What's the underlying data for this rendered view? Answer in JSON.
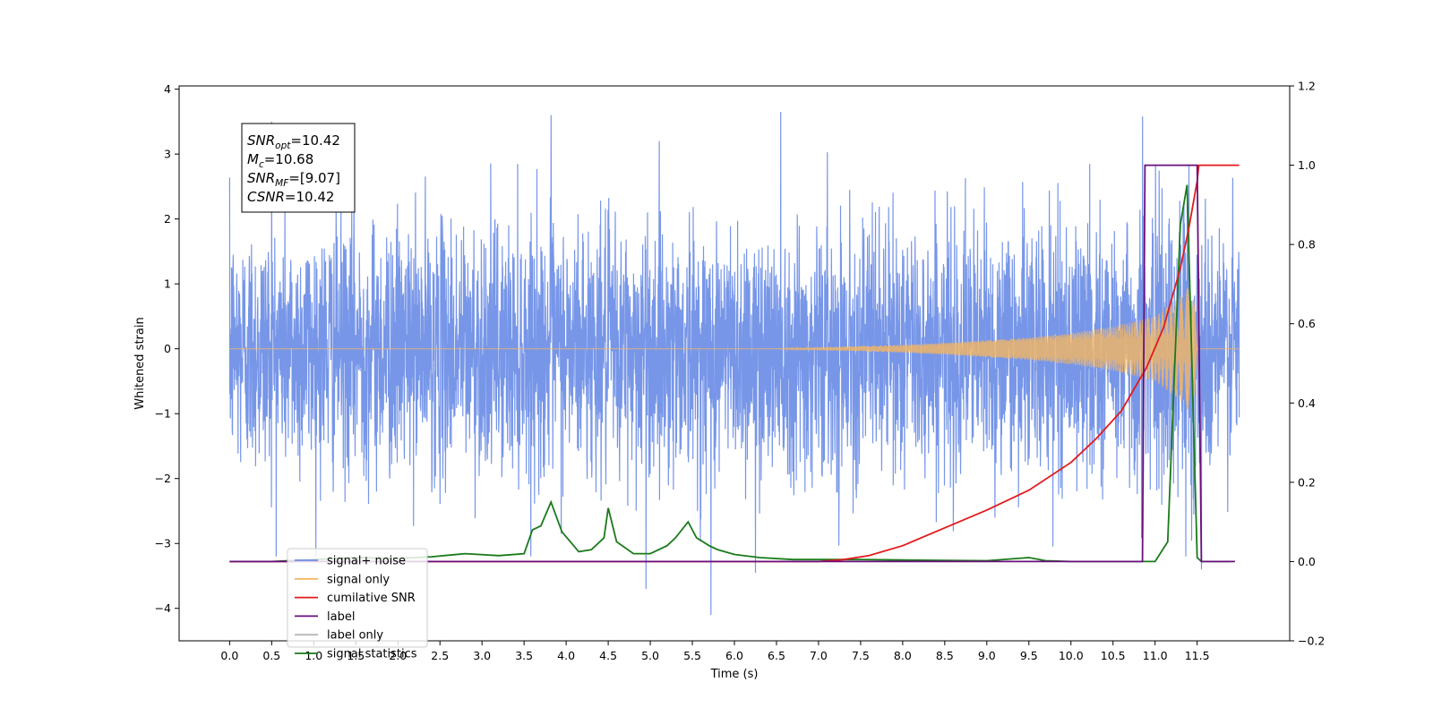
{
  "chart_data": {
    "type": "line",
    "title": "",
    "xlabel": "Time (s)",
    "ylabel": "Whitened strain",
    "xlim": [
      -0.6,
      12.6
    ],
    "ylim": [
      -4.5,
      4.05
    ],
    "y2lim": [
      -0.2,
      1.2
    ],
    "xticks": [
      "0.0",
      "0.5",
      "1.0",
      "1.5",
      "2.0",
      "2.5",
      "3.0",
      "3.5",
      "4.0",
      "4.5",
      "5.0",
      "5.5",
      "6.0",
      "6.5",
      "7.0",
      "7.5",
      "8.0",
      "8.5",
      "9.0",
      "9.5",
      "10.0",
      "10.5",
      "11.0",
      "11.5"
    ],
    "yticks": [
      "−4",
      "−3",
      "−2",
      "−1",
      "0",
      "1",
      "2",
      "3",
      "4"
    ],
    "y2ticks": [
      "−0.2",
      "0.0",
      "0.2",
      "0.4",
      "0.6",
      "0.8",
      "1.0",
      "1.2"
    ],
    "grid": false,
    "legend_position": "lower-left",
    "annotation": [
      {
        "main": "SNR",
        "sub": "opt",
        "rest": "=10.42"
      },
      {
        "main": "M",
        "sub": "c",
        "rest": "=10.68"
      },
      {
        "main": "SNR",
        "sub": "MF",
        "rest": "=[9.07]"
      },
      {
        "main": "CSNR",
        "sub": "",
        "rest": "=10.42"
      }
    ],
    "series": [
      {
        "name": "signal+ noise",
        "color": "#6b8de6",
        "axis": "left",
        "description": "noisy whitened strain, approx. sigma 1, 0 to 12.0 s",
        "t_range": [
          0.0,
          12.0
        ],
        "amplitude_std": 1.0,
        "extreme_values": [
          [
            0.5,
            3.5
          ],
          [
            3.82,
            3.6
          ],
          [
            6.55,
            3.65
          ],
          [
            10.85,
            3.58
          ],
          [
            5.72,
            -4.1
          ],
          [
            4.95,
            -3.7
          ],
          [
            11.55,
            -3.4
          ],
          [
            6.25,
            -3.45
          ]
        ]
      },
      {
        "name": "signal only",
        "color": "#f5b660",
        "axis": "left",
        "description": "chirp: envelope amplitude over time",
        "envelope_t": [
          0.0,
          6.5,
          7.0,
          7.5,
          8.0,
          8.5,
          9.0,
          9.5,
          10.0,
          10.5,
          11.0,
          11.3,
          11.45,
          11.5,
          12.0
        ],
        "envelope_amp": [
          0.0,
          0.0,
          0.02,
          0.04,
          0.06,
          0.09,
          0.13,
          0.17,
          0.24,
          0.34,
          0.5,
          0.8,
          1.05,
          0.0,
          0.0
        ]
      },
      {
        "name": "cumilative SNR",
        "color": "#e31a1c",
        "axis": "right",
        "t": [
          0.0,
          7.0,
          7.3,
          7.6,
          8.0,
          8.5,
          9.0,
          9.5,
          10.0,
          10.3,
          10.6,
          10.9,
          11.1,
          11.3,
          11.4,
          11.5,
          11.52,
          12.0
        ],
        "v": [
          0.0,
          0.0,
          0.005,
          0.015,
          0.04,
          0.085,
          0.13,
          0.18,
          0.25,
          0.31,
          0.38,
          0.49,
          0.59,
          0.74,
          0.84,
          0.96,
          1.0,
          1.0
        ]
      },
      {
        "name": "label",
        "color": "#6a0f7c",
        "axis": "right",
        "t": [
          0.0,
          10.85,
          10.88,
          11.5,
          11.55,
          11.95
        ],
        "v": [
          0.0,
          0.0,
          1.0,
          1.0,
          0.0,
          0.0
        ]
      },
      {
        "name": "label only",
        "color": "#b7b7b7",
        "axis": "right",
        "t": [],
        "v": []
      },
      {
        "name": "signal statistics",
        "color": "#1a7a1a",
        "axis": "right",
        "t": [
          0.0,
          0.5,
          1.0,
          1.5,
          2.0,
          2.4,
          2.8,
          3.2,
          3.5,
          3.6,
          3.7,
          3.82,
          3.95,
          4.05,
          4.15,
          4.3,
          4.45,
          4.5,
          4.6,
          4.8,
          5.0,
          5.2,
          5.3,
          5.45,
          5.55,
          5.7,
          5.8,
          6.0,
          6.3,
          6.7,
          7.0,
          7.5,
          8.0,
          8.5,
          9.0,
          9.5,
          9.7,
          10.0,
          10.5,
          11.0,
          11.15,
          11.3,
          11.38,
          11.5,
          11.55,
          11.9
        ],
        "v": [
          0.0,
          0.0,
          0.005,
          0.01,
          0.008,
          0.012,
          0.02,
          0.015,
          0.02,
          0.08,
          0.09,
          0.15,
          0.075,
          0.05,
          0.025,
          0.03,
          0.06,
          0.135,
          0.05,
          0.02,
          0.02,
          0.04,
          0.06,
          0.1,
          0.06,
          0.04,
          0.03,
          0.018,
          0.01,
          0.005,
          0.005,
          0.005,
          0.004,
          0.003,
          0.002,
          0.01,
          0.002,
          0.0,
          0.0,
          0.0,
          0.05,
          0.85,
          0.95,
          0.01,
          0.0,
          0.0
        ]
      }
    ]
  }
}
